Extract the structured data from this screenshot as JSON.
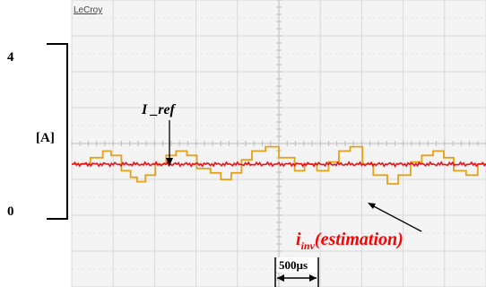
{
  "chart_data": {
    "type": "line",
    "brand": "LeCroy",
    "y_unit_label": "[A]",
    "y_ticks": [
      "4",
      "0"
    ],
    "time_scale_label": "500µs",
    "time_per_div_us": 500,
    "divisions": {
      "x": 10,
      "y": 8
    },
    "ylim": [
      0,
      4
    ],
    "grid": true,
    "colors": {
      "background": "#f4f4f4",
      "grid": "#d9d9d9",
      "center_axis": "#bdbdbd",
      "reference": "#e8131a",
      "estimation": "#e5a11a",
      "annotation_text": "#ff0000"
    },
    "series": [
      {
        "name": "I_ref",
        "label": "I _ref",
        "x_div": [
          0,
          10
        ],
        "values": [
          1.25,
          1.25
        ]
      },
      {
        "name": "iinv(estimation)",
        "label_main": "i",
        "label_sub": "inv",
        "label_rest": "(estimation)",
        "x_div": [
          0.0,
          0.45,
          0.45,
          0.75,
          0.75,
          0.95,
          0.95,
          1.2,
          1.2,
          1.42,
          1.42,
          1.58,
          1.58,
          1.78,
          1.78,
          2.02,
          2.02,
          2.28,
          2.28,
          2.52,
          2.52,
          2.78,
          2.78,
          3.02,
          3.02,
          3.35,
          3.35,
          3.6,
          3.6,
          3.85,
          3.85,
          4.1,
          4.1,
          4.35,
          4.35,
          4.68,
          4.68,
          5.0,
          5.0,
          5.38,
          5.38,
          5.62,
          5.62,
          5.92,
          5.92,
          6.2,
          6.2,
          6.45,
          6.45,
          6.72,
          6.72,
          7.02,
          7.02,
          7.28,
          7.28,
          7.62,
          7.62,
          7.88,
          7.88,
          8.18,
          8.18,
          8.45,
          8.45,
          8.72,
          8.72,
          8.98,
          8.98,
          9.22,
          9.22,
          9.52,
          9.52,
          9.8,
          9.8,
          10.0
        ],
        "values": [
          1.25,
          1.25,
          1.4,
          1.4,
          1.55,
          1.55,
          1.45,
          1.45,
          1.1,
          1.1,
          0.95,
          0.95,
          0.85,
          0.85,
          1.0,
          1.0,
          1.25,
          1.25,
          1.45,
          1.45,
          1.55,
          1.55,
          1.45,
          1.45,
          1.15,
          1.15,
          1.05,
          1.05,
          0.9,
          0.9,
          1.05,
          1.05,
          1.35,
          1.35,
          1.55,
          1.55,
          1.65,
          1.65,
          1.4,
          1.4,
          1.1,
          1.1,
          1.25,
          1.25,
          1.1,
          1.1,
          1.3,
          1.3,
          1.55,
          1.55,
          1.65,
          1.65,
          1.25,
          1.25,
          1.0,
          1.0,
          0.8,
          0.8,
          1.0,
          1.0,
          1.3,
          1.3,
          1.45,
          1.45,
          1.55,
          1.55,
          1.4,
          1.4,
          1.1,
          1.1,
          1.0,
          1.0,
          1.25,
          1.25
        ]
      }
    ]
  }
}
